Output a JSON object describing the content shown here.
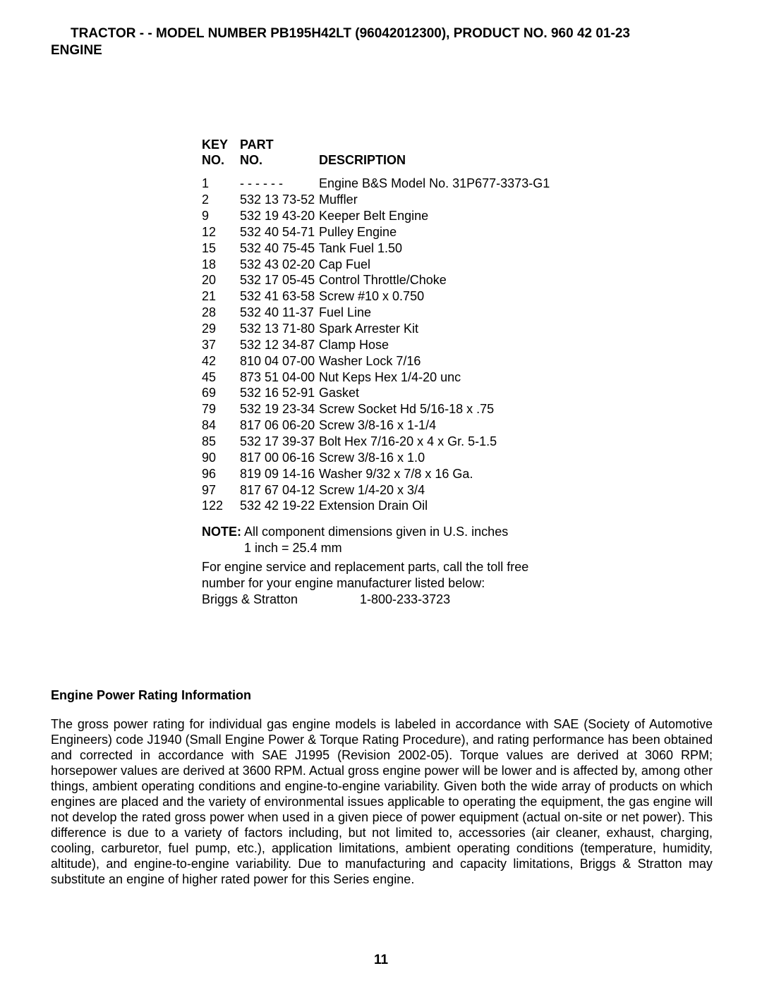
{
  "header": {
    "line1": "TRACTOR - - MODEL NUMBER PB195H42LT (96042012300), PRODUCT NO. 960 42 01-23",
    "line2": "ENGINE"
  },
  "columns": {
    "key_l1": "KEY",
    "key_l2": "NO.",
    "part_l1": "PART",
    "part_l2": "NO.",
    "desc": "DESCRIPTION"
  },
  "parts": [
    {
      "key": "1",
      "part": "- - - - - -",
      "desc": "Engine B&S Model No. 31P677-3373-G1"
    },
    {
      "key": "2",
      "part": "532 13 73-52",
      "desc": "Muffler"
    },
    {
      "key": "9",
      "part": "532 19 43-20",
      "desc": "Keeper Belt Engine"
    },
    {
      "key": "12",
      "part": "532 40 54-71",
      "desc": "Pulley Engine"
    },
    {
      "key": "15",
      "part": "532 40 75-45",
      "desc": "Tank Fuel 1.50"
    },
    {
      "key": "18",
      "part": "532 43 02-20",
      "desc": "Cap Fuel"
    },
    {
      "key": "20",
      "part": "532 17 05-45",
      "desc": "Control Throttle/Choke"
    },
    {
      "key": "21",
      "part": "532 41 63-58",
      "desc": "Screw #10 x 0.750"
    },
    {
      "key": "28",
      "part": "532 40 11-37",
      "desc": "Fuel Line"
    },
    {
      "key": "29",
      "part": "532 13 71-80",
      "desc": "Spark Arrester Kit"
    },
    {
      "key": "37",
      "part": "532 12 34-87",
      "desc": "Clamp Hose"
    },
    {
      "key": "42",
      "part": "810 04 07-00",
      "desc": "Washer Lock 7/16"
    },
    {
      "key": "45",
      "part": "873 51 04-00",
      "desc": "Nut Keps Hex 1/4-20 unc"
    },
    {
      "key": "69",
      "part": "532 16 52-91",
      "desc": "Gasket"
    },
    {
      "key": "79",
      "part": "532 19 23-34",
      "desc": "Screw Socket Hd 5/16-18 x .75"
    },
    {
      "key": "84",
      "part": "817 06 06-20",
      "desc": "Screw 3/8-16 x 1-1/4"
    },
    {
      "key": "85",
      "part": "532 17 39-37",
      "desc": "Bolt Hex 7/16-20 x 4 x Gr. 5-1.5"
    },
    {
      "key": "90",
      "part": "817 00 06-16",
      "desc": "Screw 3/8-16 x 1.0"
    },
    {
      "key": "96",
      "part": "819 09 14-16",
      "desc": "Washer 9/32 x 7/8 x 16 Ga."
    },
    {
      "key": "97",
      "part": "817 67 04-12",
      "desc": "Screw 1/4-20 x 3/4"
    },
    {
      "key": "122",
      "part": "532 42 19-22",
      "desc": "Extension Drain Oil"
    }
  ],
  "note": {
    "label": "NOTE:",
    "text1": "  All component dimensions given in U.S. inches",
    "text2": "1 inch = 25.4 mm",
    "service1": "For engine service and replacement parts, call the toll free",
    "service2": "number for your engine manufacturer listed below:",
    "mfr_name": "Briggs & Stratton",
    "mfr_phone": "1-800-233-3723"
  },
  "rating": {
    "title": "Engine Power Rating Information",
    "body": "The gross power rating for individual gas engine models is labeled in accordance with SAE (Society of Automotive Engineers) code J1940 (Small Engine Power & Torque Rating Procedure), and rating performance has been obtained and corrected in accordance with SAE J1995 (Revision 2002-05). Torque values are derived at 3060 RPM; horsepower values are derived at 3600 RPM. Actual gross engine power will be lower and is affected by, among other things, ambient operating conditions and engine-to-engine variability. Given both the wide array of products on which engines are placed and the variety of environmental issues applicable to operating the equipment, the gas engine will not develop the rated gross power when used in a given piece of power equipment (actual  on-site  or net power). This difference is due to a variety of factors including, but not limited to, accessories (air cleaner, exhaust, charging, cooling, carburetor, fuel pump, etc.), application limitations, ambient operating conditions (temperature, humidity, altitude), and engine-to-engine variability. Due to manufacturing and capacity limitations, Briggs & Stratton may substitute an engine of higher rated power for this Series engine."
  },
  "page_number": "11"
}
